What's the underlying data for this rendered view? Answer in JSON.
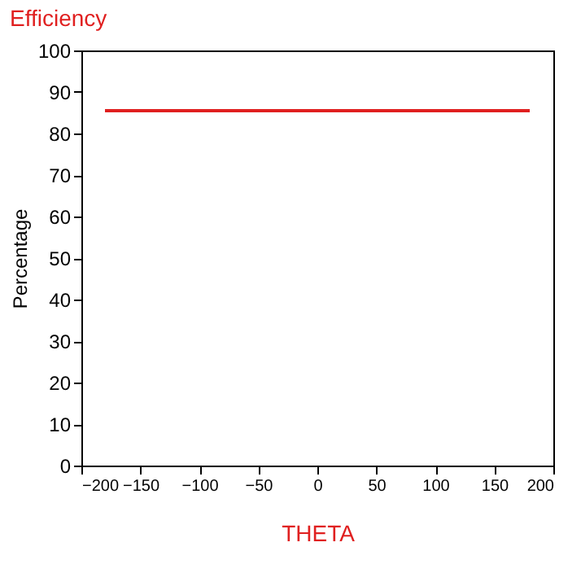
{
  "chart_data": {
    "type": "line",
    "title": "Efficiency",
    "xlabel": "THETA",
    "ylabel": "Percentage",
    "x": [
      -180,
      180
    ],
    "series": [
      {
        "color": "#e02020",
        "values": [
          85.5,
          85.5
        ]
      }
    ],
    "xlim": [
      -200,
      200
    ],
    "xticks": [
      -200,
      -150,
      -100,
      -50,
      0,
      50,
      100,
      150,
      200
    ],
    "ylim": [
      0,
      100
    ],
    "yticks": [
      0,
      10,
      20,
      30,
      40,
      50,
      60,
      70,
      80,
      90,
      100
    ],
    "grid": false,
    "legend": false,
    "marker": "none",
    "line_style": "solid"
  }
}
